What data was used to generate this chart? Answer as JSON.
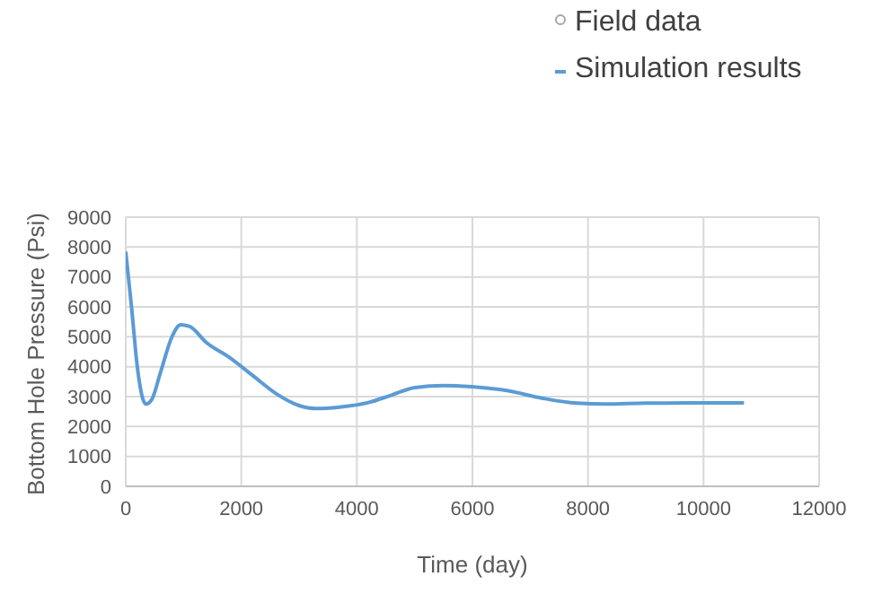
{
  "chart_data": {
    "type": "line",
    "xlabel": "Time (day)",
    "ylabel": "Bottom Hole Pressure (Psi)",
    "xlim": [
      0,
      12000
    ],
    "xticks": [
      0,
      2000,
      4000,
      6000,
      8000,
      10000,
      12000
    ],
    "ylim": [
      0,
      9000
    ],
    "yticks": [
      0,
      1000,
      2000,
      3000,
      4000,
      5000,
      6000,
      7000,
      8000,
      9000
    ],
    "grid": true,
    "legend": "top right",
    "marker": "none",
    "line_style": "solid",
    "series": [
      {
        "name": "Field data",
        "type": "scatter",
        "marker": "circle",
        "color": "#a5a5a5"
      },
      {
        "name": "Simulation results",
        "color": "#5b9bd5",
        "x": [
          0,
          100,
          200,
          300,
          350,
          450,
          600,
          800,
          950,
          1100,
          1400,
          1800,
          2200,
          2600,
          3000,
          3300,
          3700,
          4200,
          4600,
          5000,
          5500,
          6000,
          6600,
          7200,
          7800,
          8300,
          9000,
          10000,
          10700
        ],
        "values": [
          7850,
          6000,
          4000,
          2900,
          2750,
          2900,
          3800,
          5000,
          5400,
          5350,
          4800,
          4300,
          3700,
          3100,
          2700,
          2600,
          2650,
          2800,
          3050,
          3300,
          3370,
          3330,
          3200,
          2950,
          2780,
          2750,
          2780,
          2790,
          2790
        ]
      }
    ]
  }
}
